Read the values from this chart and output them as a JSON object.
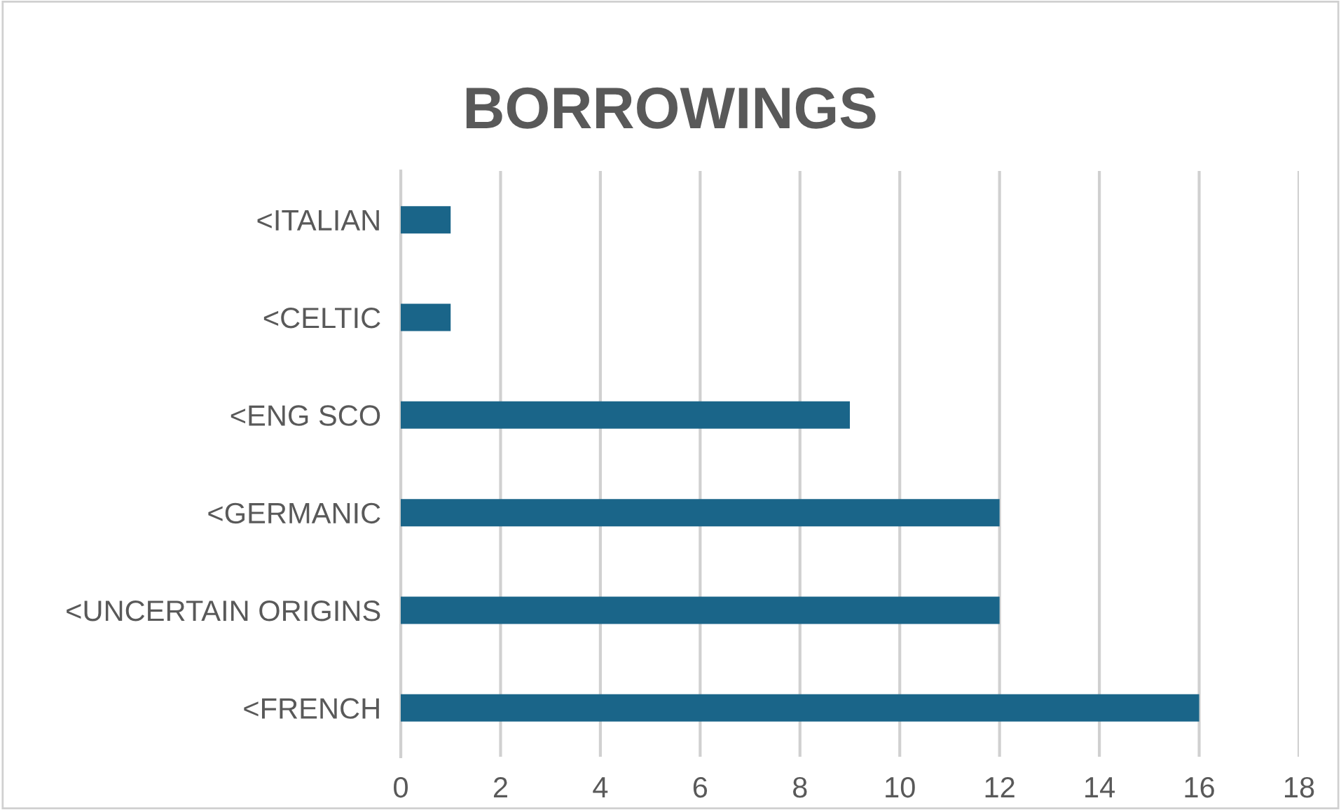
{
  "chart_data": {
    "type": "bar",
    "orientation": "horizontal",
    "title": "BORROWINGS",
    "categories": [
      "<ITALIAN",
      "<CELTIC",
      "<ENG SCO",
      "<GERMANIC",
      "<UNCERTAIN ORIGINS",
      "<FRENCH"
    ],
    "values": [
      1,
      1,
      9,
      12,
      12,
      16
    ],
    "color": "#1a6589",
    "xlim": [
      0,
      18
    ],
    "xticks": [
      0,
      2,
      4,
      6,
      8,
      10,
      12,
      14,
      16,
      18
    ],
    "grid": "x",
    "legend": false
  }
}
